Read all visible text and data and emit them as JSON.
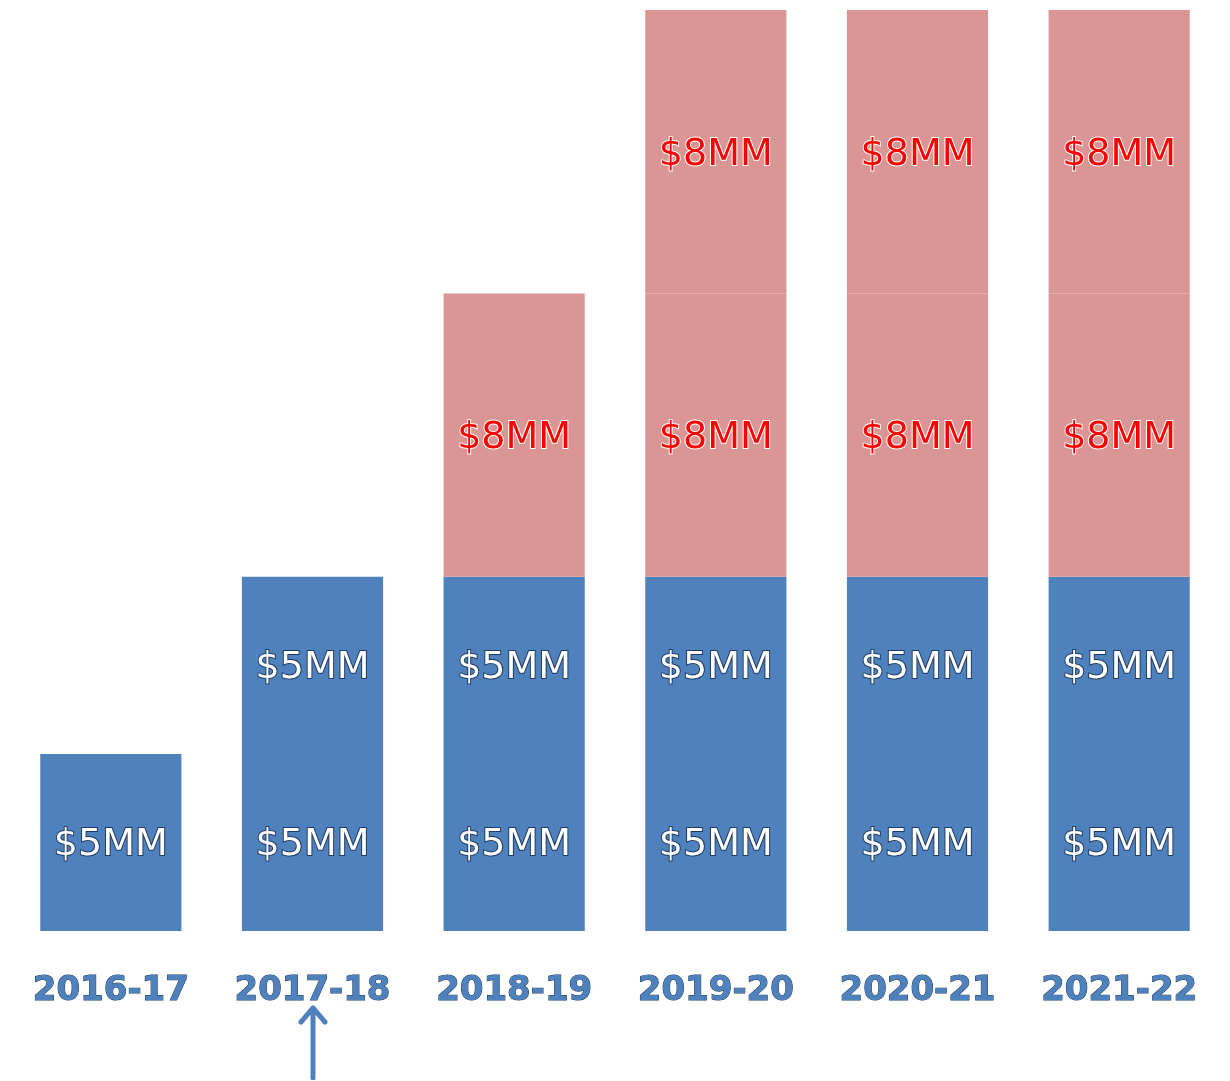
{
  "chart_data": {
    "type": "bar",
    "stacked": true,
    "categories": [
      "2016-17",
      "2017-18",
      "2018-19",
      "2019-20",
      "2020-21",
      "2021-22"
    ],
    "series": [
      {
        "color": "#4f81bd",
        "values": [
          5,
          5,
          5,
          5,
          5,
          5
        ],
        "value_labels": [
          "$5MM",
          "$5MM",
          "$5MM",
          "$5MM",
          "$5MM",
          "$5MM"
        ]
      },
      {
        "color": "#4f81bd",
        "values": [
          null,
          5,
          5,
          5,
          5,
          5
        ],
        "value_labels": [
          null,
          "$5MM",
          "$5MM",
          "$5MM",
          "$5MM",
          "$5MM"
        ]
      },
      {
        "color": "#d99694",
        "values": [
          null,
          null,
          8,
          8,
          8,
          8
        ],
        "value_labels": [
          null,
          null,
          "$8MM",
          "$8MM",
          "$8MM",
          "$8MM"
        ]
      },
      {
        "color": "#d99694",
        "values": [
          null,
          null,
          null,
          8,
          8,
          8
        ],
        "value_labels": [
          null,
          null,
          null,
          "$8MM",
          "$8MM",
          "$8MM"
        ]
      }
    ]
  }
}
